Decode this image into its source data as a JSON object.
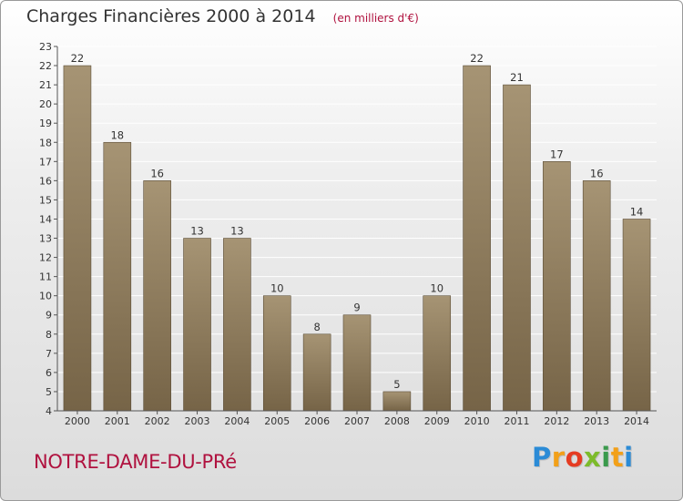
{
  "header": {
    "title": "Charges Financières 2000 à 2014",
    "unit": "(en milliers d'€)"
  },
  "footer": {
    "commune": "NOTRE-DAME-DU-PRé",
    "brand": "Proxiti"
  },
  "colors": {
    "bar_top": "#a69474",
    "bar_bottom": "#766447",
    "bar_edge": "#5b4d37",
    "grid": "#ffffff",
    "accent": "#b0123f"
  },
  "chart_data": {
    "type": "bar",
    "title": "Charges Financières 2000 à 2014",
    "subtitle": "(en milliers d'€)",
    "xlabel": "",
    "ylabel": "",
    "categories": [
      "2000",
      "2001",
      "2002",
      "2003",
      "2004",
      "2005",
      "2006",
      "2007",
      "2008",
      "2009",
      "2010",
      "2011",
      "2012",
      "2013",
      "2014"
    ],
    "values": [
      22,
      18,
      16,
      13,
      13,
      10,
      8,
      9,
      5,
      10,
      22,
      21,
      17,
      16,
      14
    ],
    "ylim": [
      4,
      23
    ],
    "yticks": [
      4,
      5,
      6,
      7,
      8,
      9,
      10,
      11,
      12,
      13,
      14,
      15,
      16,
      17,
      18,
      19,
      20,
      21,
      22,
      23
    ],
    "grid": true,
    "legend": "none"
  }
}
